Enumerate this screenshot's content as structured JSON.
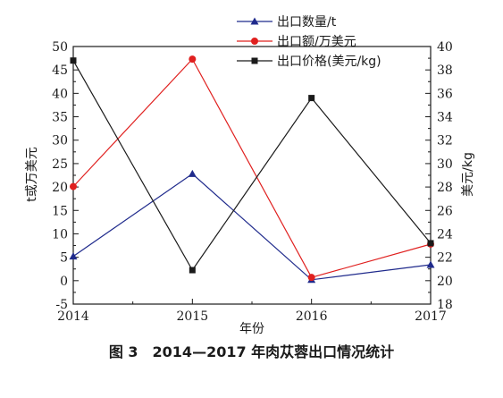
{
  "caption": "图 3　2014—2017 年肉苁蓉出口情况统计",
  "chart_data": {
    "type": "line",
    "categories": [
      "2014",
      "2015",
      "2016",
      "2017"
    ],
    "x": [
      2014,
      2015,
      2016,
      2017
    ],
    "xlabel": "年份",
    "ylabel_left": "t或万美元",
    "ylabel_right": "美元/kg",
    "ylim_left": [
      -5,
      50
    ],
    "ylim_right": [
      18,
      40
    ],
    "yticks_left": [
      "-5",
      "0",
      "5",
      "10",
      "15",
      "20",
      "25",
      "30",
      "35",
      "40",
      "45",
      "50"
    ],
    "yticks_right": [
      "18",
      "20",
      "22",
      "24",
      "26",
      "28",
      "30",
      "32",
      "34",
      "36",
      "38",
      "40"
    ],
    "xticks": [
      "2014",
      "2015",
      "2016",
      "2017"
    ],
    "legend_position": "top-center",
    "series": [
      {
        "name": "出口数量/t",
        "axis": "left",
        "color": "#1f2a8c",
        "marker": "triangle",
        "values": [
          5.2,
          22.8,
          0.2,
          3.4
        ]
      },
      {
        "name": "出口额/万美元",
        "axis": "left",
        "color": "#e0201f",
        "marker": "circle",
        "values": [
          20.1,
          47.3,
          0.7,
          7.8
        ]
      },
      {
        "name": "出口价格(美元/kg)",
        "axis": "right",
        "color": "#1a1a1a",
        "marker": "square",
        "values": [
          38.8,
          20.9,
          35.6,
          23.2
        ]
      }
    ],
    "grid": false
  }
}
